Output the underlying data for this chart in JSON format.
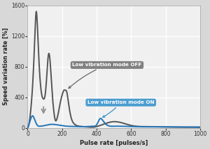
{
  "xlabel": "Pulse rate [pulses/s]",
  "ylabel": "Speed variation rate [%]",
  "xlim": [
    0,
    1000
  ],
  "ylim": [
    0,
    1600
  ],
  "yticks": [
    0,
    400,
    800,
    1200,
    1600
  ],
  "xticks": [
    0,
    200,
    400,
    600,
    800,
    1000
  ],
  "bg_color": "#d8d8d8",
  "plot_bg_color": "#f0f0f0",
  "grid_color": "#ffffff",
  "off_color": "#555555",
  "on_color": "#2475b8",
  "label_off_text": "Low vibration mode OFF",
  "label_on_text": "Low vibration mode ON",
  "label_off_bg": "#757575",
  "label_on_bg": "#3a94cc",
  "label_text_color": "#ffffff"
}
